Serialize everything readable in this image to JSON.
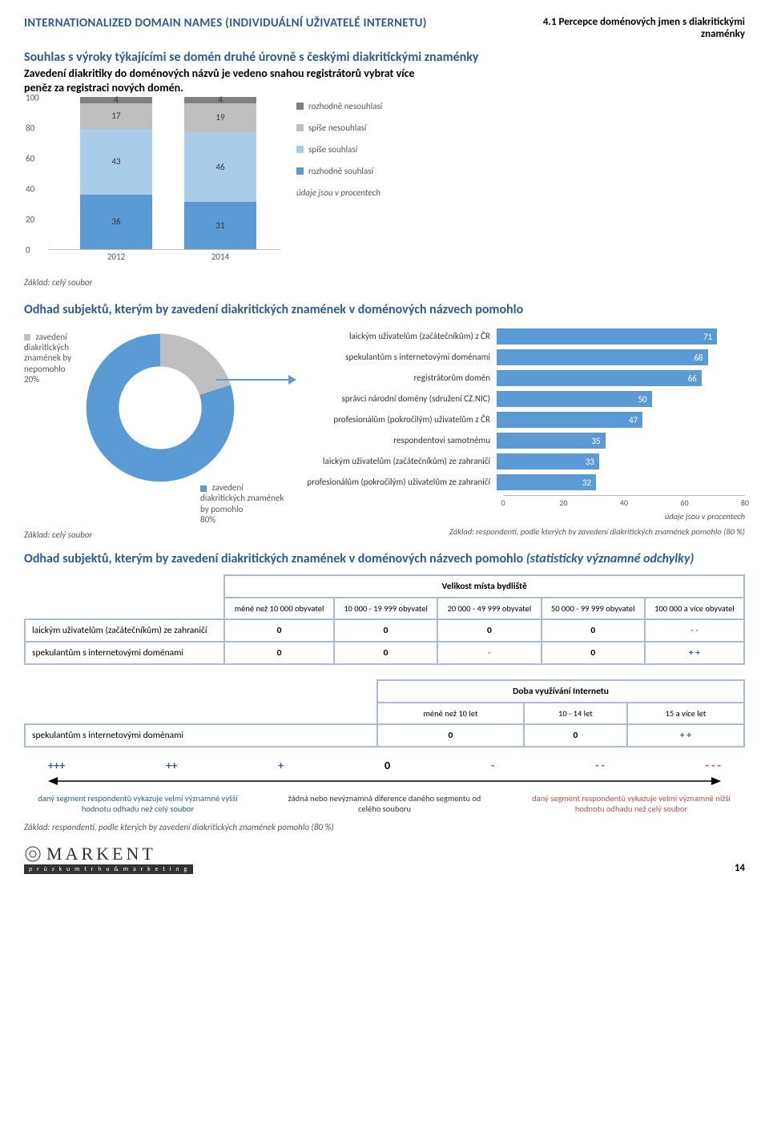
{
  "colors": {
    "brand_blue": "#2e5b97",
    "bar_blue": "#5b9bd5",
    "bar_lightblue": "#a9cce9",
    "bar_grey": "#bfbfbf",
    "bar_darkgrey": "#808080",
    "neg_red": "#c0504d",
    "table_border": "#a6bcd9"
  },
  "header": {
    "left": "INTERNATIONALIZED DOMAIN NAMES (INDIVIDUÁLNÍ UŽIVATELÉ INTERNETU)",
    "right": "4.1 Percepce doménových jmen s diakritickými znaménky"
  },
  "section1": {
    "title": "Souhlas s výroky týkajícími se domén druhé úrovně s českými diakritickými znaménky",
    "subtitle": "Zavedení diakritiky do doménových názvů je vedeno snahou registrátorů vybrat více peněz za registraci nových domén.",
    "chart": {
      "type": "stacked-bar",
      "ylim": [
        0,
        100
      ],
      "ytick_step": 20,
      "yticks": [
        "0",
        "20",
        "40",
        "60",
        "80",
        "100"
      ],
      "categories": [
        "2012",
        "2014"
      ],
      "segments": [
        {
          "key": "rozhodne_souhlasi",
          "label": "rozhodně souhlasí",
          "color": "#5b9bd5"
        },
        {
          "key": "spise_souhlasi",
          "label": "spíše souhlasí",
          "color": "#a9cce9"
        },
        {
          "key": "spise_nesouhlasi",
          "label": "spíše nesouhlasí",
          "color": "#bfbfbf"
        },
        {
          "key": "rozhodne_nesouhlasi",
          "label": "rozhodně nesouhlasí",
          "color": "#808080"
        }
      ],
      "data": {
        "2012": {
          "rozhodne_souhlasi": 36,
          "spise_souhlasi": 43,
          "spise_nesouhlasi": 17,
          "rozhodne_nesouhlasi": 4
        },
        "2014": {
          "rozhodne_souhlasi": 31,
          "spise_souhlasi": 46,
          "spise_nesouhlasi": 19,
          "rozhodne_nesouhlasi": 4
        }
      },
      "note": "údaje jsou v procentech"
    },
    "basis": "Základ: celý soubor"
  },
  "section2": {
    "title": "Odhad subjektů, kterým by zavedení diakritických znamének v doménových názvech pomohlo",
    "donut": {
      "type": "donut",
      "slices": [
        {
          "label": "zavedení diakritických znamének by nepomohlo",
          "value": 20,
          "pct": "20%",
          "color": "#bfbfbf"
        },
        {
          "label": "zavedení diakritických znamének by pomohlo",
          "value": 80,
          "pct": "80%",
          "color": "#5b9bd5"
        }
      ],
      "inner_ratio": 0.55
    },
    "hbar": {
      "type": "horizontal-bar",
      "xlim": [
        0,
        80
      ],
      "xticks": [
        "0",
        "20",
        "40",
        "60",
        "80"
      ],
      "bar_color": "#5b9bd5",
      "items": [
        {
          "label": "laickým uživatelům (začátečníkům) z ČR",
          "value": 71
        },
        {
          "label": "spekulantům s internetovými doménami",
          "value": 68
        },
        {
          "label": "registrátorům domén",
          "value": 66
        },
        {
          "label": "správci národní domény (sdružení CZ.NIC)",
          "value": 50
        },
        {
          "label": "profesionálům (pokročilým) uživatelům z ČR",
          "value": 47
        },
        {
          "label": "respondentovi samotnému",
          "value": 35
        },
        {
          "label": "laickým uživatelům (začátečníkům) ze zahraničí",
          "value": 33
        },
        {
          "label": "profesionálům (pokročilým) uživatelům ze zahraničí",
          "value": 32
        }
      ],
      "note": "údaje jsou v procentech",
      "basis": "Základ: respondenti, podle kterých by zavedení diakritických znamének pomohlo (80 %)"
    },
    "basis_left": "Základ: celý soubor"
  },
  "section3": {
    "title_main": "Odhad subjektů, kterým by zavedení diakritických znamének v doménových názvech pomohlo ",
    "title_italic": "(statisticky významné odchylky)",
    "table1": {
      "group_header": "Velikost místa bydliště",
      "columns": [
        "méně než 10 000 obyvatel",
        "10 000 - 19 999 obyvatel",
        "20 000 - 49 999 obyvatel",
        "50 000 - 99 999 obyvatel",
        "100 000 a více obyvatel"
      ],
      "rows": [
        {
          "label": "laickým uživatelům (začátečníkům) ze zahraničí",
          "cells": [
            {
              "t": "0"
            },
            {
              "t": "0"
            },
            {
              "t": "0"
            },
            {
              "t": "0"
            },
            {
              "t": "- -",
              "cls": "neg"
            }
          ]
        },
        {
          "label": "spekulantům s internetovými doménami",
          "cells": [
            {
              "t": "0"
            },
            {
              "t": "0"
            },
            {
              "t": "-",
              "cls": "neg"
            },
            {
              "t": "0"
            },
            {
              "t": "+ +",
              "cls": "pos"
            }
          ]
        }
      ]
    },
    "table2": {
      "group_header": "Doba využívání Internetu",
      "columns": [
        "méně než 10 let",
        "10 - 14 let",
        "15 a více let"
      ],
      "rows": [
        {
          "label": "spekulantům s internetovými doménami",
          "cells": [
            {
              "t": "0"
            },
            {
              "t": "0"
            },
            {
              "t": "+ +",
              "cls": "pos"
            }
          ]
        }
      ]
    },
    "scale": [
      "+++",
      "++",
      "+",
      "0",
      "-",
      "- -",
      "- - -"
    ],
    "explain": {
      "pos": "daný segment respondentů vykazuje velmi významně vyšší hodnotu odhadu než celý soubor",
      "mid": "žádná nebo nevýznamná diference daného segmentu od celého souboru",
      "neg": "daný segment respondentů vykazuje velmi významně nižší hodnotu odhadu než celý soubor"
    },
    "basis": "Základ: respondenti, podle kterých by zavedení diakritických znamének pomohlo (80 %)"
  },
  "footer": {
    "logo_main": "MARKENT",
    "logo_sub": "p r ů z k u m   t r h u   &   m a r k e t i n g",
    "page": "14"
  }
}
